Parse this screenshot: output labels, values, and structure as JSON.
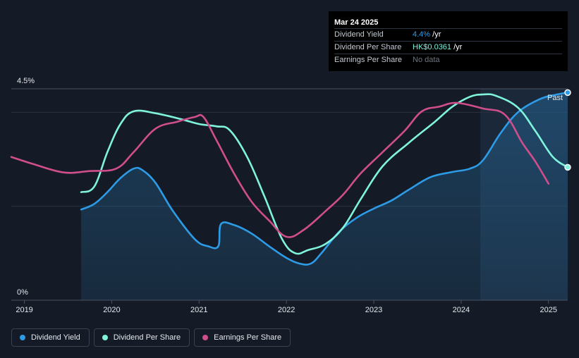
{
  "tooltip": {
    "date": "Mar 24 2025",
    "rows": [
      {
        "label": "Dividend Yield",
        "value": "4.4%",
        "unit": " /yr"
      },
      {
        "label": "Dividend Per Share",
        "value": "HK$0.0361",
        "unit": " /yr"
      },
      {
        "label": "Earnings Per Share",
        "value": "No data"
      }
    ]
  },
  "legend": {
    "items": [
      {
        "label": "Dividend Yield",
        "color": "#2e9be6"
      },
      {
        "label": "Dividend Per Share",
        "color": "#7ff3dc"
      },
      {
        "label": "Earnings Per Share",
        "color": "#d04e8c"
      }
    ]
  },
  "past_label": "Past",
  "chart_data": {
    "type": "line",
    "xlim": [
      2018.85,
      2025.22
    ],
    "ylim": [
      0,
      4.5
    ],
    "y_ticks": [
      {
        "value": 4.5,
        "label": "4.5%"
      },
      {
        "value": 0,
        "label": "0%"
      }
    ],
    "x_ticks": [
      {
        "value": 2019,
        "label": "2019"
      },
      {
        "value": 2020,
        "label": "2020"
      },
      {
        "value": 2021,
        "label": "2021"
      },
      {
        "value": 2022,
        "label": "2022"
      },
      {
        "value": 2023,
        "label": "2023"
      },
      {
        "value": 2024,
        "label": "2024"
      },
      {
        "value": 2025,
        "label": "2025"
      }
    ],
    "gridlines": [
      4.0,
      2.0
    ],
    "past_region_start": 2024.22,
    "series": [
      {
        "name": "Dividend Yield",
        "color": "#2e9be6",
        "fill": true,
        "points": [
          [
            2019.65,
            1.93
          ],
          [
            2019.8,
            2.05
          ],
          [
            2019.95,
            2.3
          ],
          [
            2020.1,
            2.6
          ],
          [
            2020.25,
            2.8
          ],
          [
            2020.35,
            2.77
          ],
          [
            2020.5,
            2.5
          ],
          [
            2020.7,
            1.9
          ],
          [
            2020.95,
            1.3
          ],
          [
            2021.1,
            1.15
          ],
          [
            2021.22,
            1.15
          ],
          [
            2021.25,
            1.62
          ],
          [
            2021.4,
            1.6
          ],
          [
            2021.6,
            1.42
          ],
          [
            2021.8,
            1.15
          ],
          [
            2022.0,
            0.9
          ],
          [
            2022.15,
            0.78
          ],
          [
            2022.28,
            0.78
          ],
          [
            2022.4,
            1.0
          ],
          [
            2022.6,
            1.45
          ],
          [
            2022.8,
            1.75
          ],
          [
            2023.0,
            1.95
          ],
          [
            2023.2,
            2.12
          ],
          [
            2023.4,
            2.35
          ],
          [
            2023.65,
            2.62
          ],
          [
            2023.9,
            2.73
          ],
          [
            2024.1,
            2.8
          ],
          [
            2024.25,
            2.98
          ],
          [
            2024.45,
            3.55
          ],
          [
            2024.65,
            4.0
          ],
          [
            2024.9,
            4.28
          ],
          [
            2025.1,
            4.38
          ],
          [
            2025.22,
            4.42
          ]
        ]
      },
      {
        "name": "Dividend Per Share",
        "color": "#7ff3dc",
        "fill": false,
        "points": [
          [
            2019.65,
            2.3
          ],
          [
            2019.8,
            2.42
          ],
          [
            2019.95,
            3.15
          ],
          [
            2020.1,
            3.75
          ],
          [
            2020.25,
            4.02
          ],
          [
            2020.5,
            3.98
          ],
          [
            2020.8,
            3.85
          ],
          [
            2021.0,
            3.75
          ],
          [
            2021.2,
            3.7
          ],
          [
            2021.35,
            3.62
          ],
          [
            2021.55,
            3.05
          ],
          [
            2021.75,
            2.2
          ],
          [
            2021.95,
            1.3
          ],
          [
            2022.1,
            1.0
          ],
          [
            2022.25,
            1.07
          ],
          [
            2022.45,
            1.2
          ],
          [
            2022.65,
            1.55
          ],
          [
            2022.85,
            2.15
          ],
          [
            2023.1,
            2.85
          ],
          [
            2023.4,
            3.35
          ],
          [
            2023.7,
            3.8
          ],
          [
            2023.9,
            4.12
          ],
          [
            2024.1,
            4.33
          ],
          [
            2024.25,
            4.38
          ],
          [
            2024.4,
            4.35
          ],
          [
            2024.65,
            4.1
          ],
          [
            2024.85,
            3.6
          ],
          [
            2025.05,
            3.05
          ],
          [
            2025.22,
            2.83
          ]
        ]
      },
      {
        "name": "Earnings Per Share",
        "color": "#d04e8c",
        "fill": false,
        "points": [
          [
            2018.85,
            3.05
          ],
          [
            2019.1,
            2.9
          ],
          [
            2019.45,
            2.72
          ],
          [
            2019.75,
            2.75
          ],
          [
            2020.05,
            2.8
          ],
          [
            2020.25,
            3.15
          ],
          [
            2020.5,
            3.65
          ],
          [
            2020.75,
            3.8
          ],
          [
            2020.95,
            3.9
          ],
          [
            2021.05,
            3.9
          ],
          [
            2021.2,
            3.4
          ],
          [
            2021.4,
            2.7
          ],
          [
            2021.6,
            2.1
          ],
          [
            2021.8,
            1.7
          ],
          [
            2022.0,
            1.35
          ],
          [
            2022.2,
            1.5
          ],
          [
            2022.45,
            1.9
          ],
          [
            2022.65,
            2.25
          ],
          [
            2022.85,
            2.7
          ],
          [
            2023.1,
            3.15
          ],
          [
            2023.35,
            3.6
          ],
          [
            2023.55,
            4.02
          ],
          [
            2023.75,
            4.12
          ],
          [
            2023.95,
            4.2
          ],
          [
            2024.25,
            4.08
          ],
          [
            2024.5,
            3.95
          ],
          [
            2024.7,
            3.35
          ],
          [
            2024.85,
            2.95
          ],
          [
            2025.0,
            2.48
          ]
        ]
      }
    ]
  }
}
